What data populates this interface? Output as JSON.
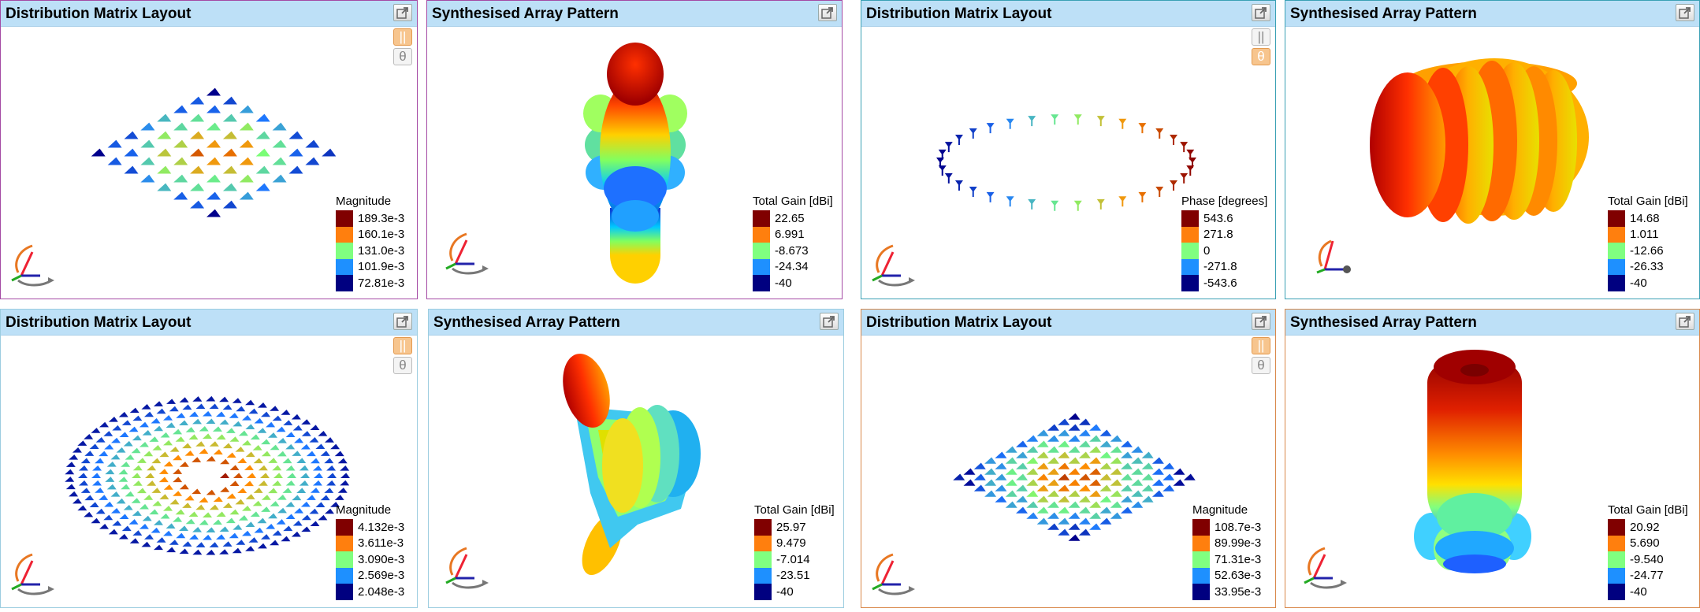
{
  "colors": {
    "titlebar": "#bde0f7",
    "scale": [
      "#800000",
      "#ff7f0e",
      "#80ff80",
      "#1e90ff",
      "#000080"
    ]
  },
  "panels": [
    {
      "title": "Distribution Matrix Layout",
      "toggles": {
        "bars_active": true,
        "theta_active": false
      },
      "legend": {
        "title": "Magnitude",
        "values": [
          "189.3e-3",
          "160.1e-3",
          "131.0e-3",
          "101.9e-3",
          "72.81e-3"
        ]
      }
    },
    {
      "title": "Synthesised Array Pattern",
      "legend": {
        "title": "Total Gain [dBi]",
        "values": [
          "22.65",
          "6.991",
          "-8.673",
          "-24.34",
          "-40"
        ]
      }
    },
    {
      "title": "Distribution Matrix Layout",
      "toggles": {
        "bars_active": false,
        "theta_active": true
      },
      "legend": {
        "title": "Phase [degrees]",
        "values": [
          "543.6",
          "271.8",
          "0",
          "-271.8",
          "-543.6"
        ]
      }
    },
    {
      "title": "Synthesised Array Pattern",
      "legend": {
        "title": "Total Gain [dBi]",
        "values": [
          "14.68",
          "1.011",
          "-12.66",
          "-26.33",
          "-40"
        ]
      }
    },
    {
      "title": "Distribution Matrix Layout",
      "toggles": {
        "bars_active": true,
        "theta_active": false
      },
      "legend": {
        "title": "Magnitude",
        "values": [
          "4.132e-3",
          "3.611e-3",
          "3.090e-3",
          "2.569e-3",
          "2.048e-3"
        ]
      }
    },
    {
      "title": "Synthesised Array Pattern",
      "legend": {
        "title": "Total Gain [dBi]",
        "values": [
          "25.97",
          "9.479",
          "-7.014",
          "-23.51",
          "-40"
        ]
      }
    },
    {
      "title": "Distribution Matrix Layout",
      "toggles": {
        "bars_active": true,
        "theta_active": false
      },
      "legend": {
        "title": "Magnitude",
        "values": [
          "108.7e-3",
          "89.99e-3",
          "71.31e-3",
          "52.63e-3",
          "33.95e-3"
        ]
      }
    },
    {
      "title": "Synthesised Array Pattern",
      "legend": {
        "title": "Total Gain [dBi]",
        "values": [
          "20.92",
          "5.690",
          "-9.540",
          "-24.77",
          "-40"
        ]
      }
    }
  ]
}
